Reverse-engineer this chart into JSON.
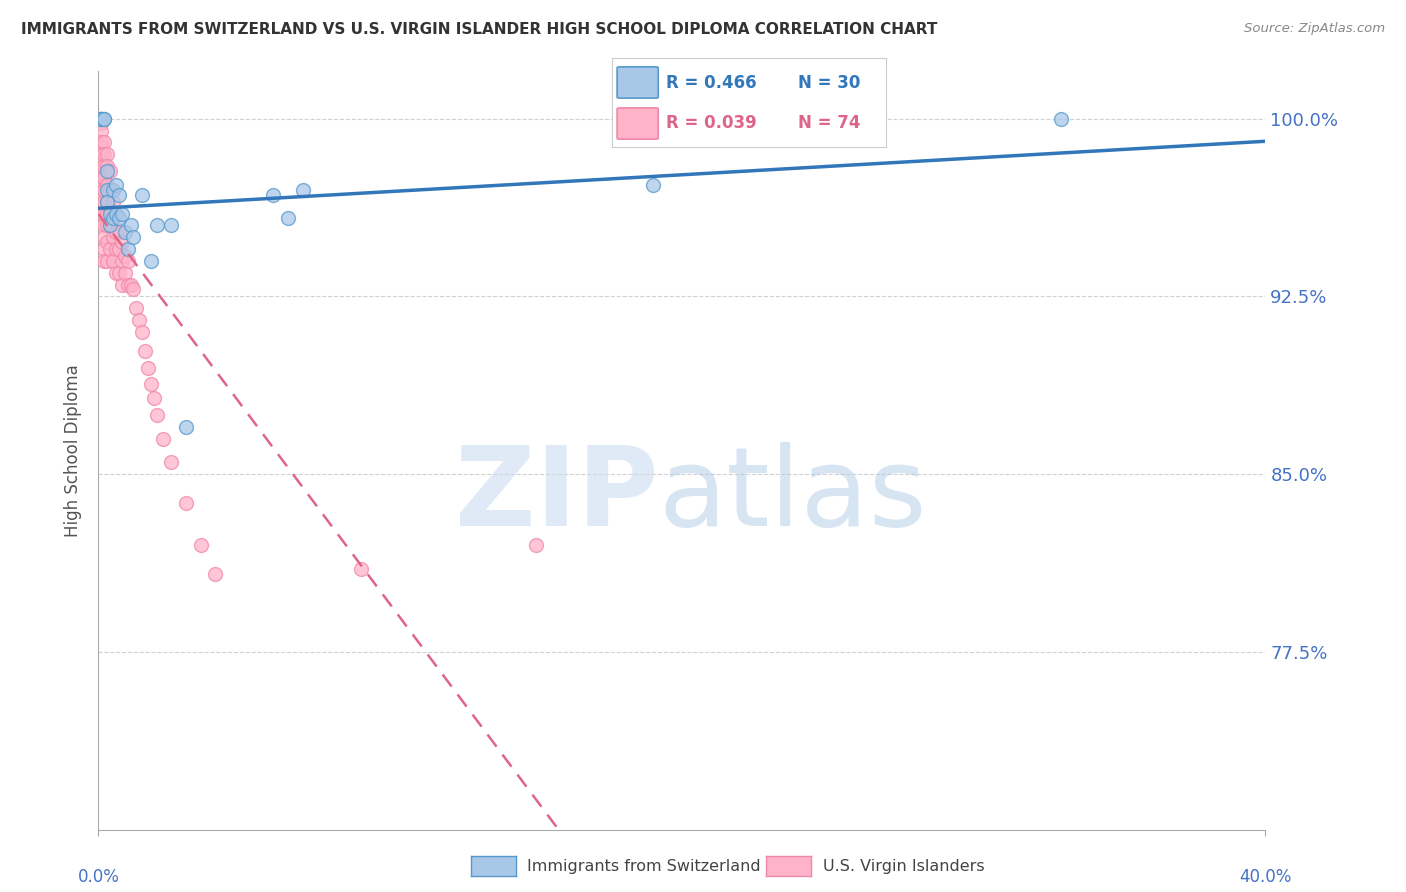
{
  "title": "IMMIGRANTS FROM SWITZERLAND VS U.S. VIRGIN ISLANDER HIGH SCHOOL DIPLOMA CORRELATION CHART",
  "source": "Source: ZipAtlas.com",
  "ylabel": "High School Diploma",
  "yticks": [
    0.775,
    0.85,
    0.925,
    1.0
  ],
  "ytick_labels": [
    "77.5%",
    "85.0%",
    "92.5%",
    "100.0%"
  ],
  "xmin": 0.0,
  "xmax": 0.4,
  "ymin": 0.7,
  "ymax": 1.02,
  "legend_r1": "R = 0.466",
  "legend_n1": "N = 30",
  "legend_r2": "R = 0.039",
  "legend_n2": "N = 74",
  "color_swiss_fill": "#a8c8e8",
  "color_swiss_edge": "#5599cc",
  "color_swiss_line": "#3377bb",
  "color_virgin_fill": "#ffb3c8",
  "color_virgin_edge": "#ee88aa",
  "color_virgin_line": "#dd6688",
  "color_axis_labels": "#4472C4",
  "color_title": "#333333",
  "swiss_x": [
    0.001,
    0.001,
    0.002,
    0.002,
    0.003,
    0.003,
    0.003,
    0.004,
    0.004,
    0.005,
    0.005,
    0.006,
    0.006,
    0.007,
    0.007,
    0.008,
    0.009,
    0.01,
    0.011,
    0.012,
    0.015,
    0.018,
    0.02,
    0.025,
    0.03,
    0.06,
    0.065,
    0.07,
    0.19,
    0.33
  ],
  "swiss_y": [
    1.0,
    1.0,
    1.0,
    1.0,
    0.978,
    0.97,
    0.965,
    0.96,
    0.955,
    0.97,
    0.958,
    0.972,
    0.96,
    0.968,
    0.958,
    0.96,
    0.952,
    0.945,
    0.955,
    0.95,
    0.968,
    0.94,
    0.955,
    0.955,
    0.87,
    0.968,
    0.958,
    0.97,
    0.972,
    1.0
  ],
  "virgin_x": [
    0.001,
    0.001,
    0.001,
    0.001,
    0.001,
    0.001,
    0.001,
    0.001,
    0.001,
    0.001,
    0.001,
    0.001,
    0.001,
    0.001,
    0.001,
    0.002,
    0.002,
    0.002,
    0.002,
    0.002,
    0.002,
    0.002,
    0.002,
    0.002,
    0.002,
    0.002,
    0.003,
    0.003,
    0.003,
    0.003,
    0.003,
    0.003,
    0.003,
    0.003,
    0.004,
    0.004,
    0.004,
    0.004,
    0.004,
    0.005,
    0.005,
    0.005,
    0.005,
    0.006,
    0.006,
    0.006,
    0.006,
    0.007,
    0.007,
    0.007,
    0.008,
    0.008,
    0.008,
    0.009,
    0.009,
    0.01,
    0.01,
    0.011,
    0.012,
    0.013,
    0.014,
    0.015,
    0.016,
    0.017,
    0.018,
    0.019,
    0.02,
    0.022,
    0.025,
    0.03,
    0.035,
    0.04,
    0.09,
    0.15
  ],
  "virgin_y": [
    1.0,
    1.0,
    1.0,
    1.0,
    0.998,
    0.995,
    0.99,
    0.988,
    0.985,
    0.982,
    0.978,
    0.975,
    0.972,
    0.968,
    0.96,
    0.99,
    0.985,
    0.98,
    0.975,
    0.97,
    0.965,
    0.96,
    0.955,
    0.95,
    0.945,
    0.94,
    0.985,
    0.98,
    0.972,
    0.965,
    0.96,
    0.955,
    0.948,
    0.94,
    0.978,
    0.97,
    0.962,
    0.955,
    0.945,
    0.965,
    0.958,
    0.95,
    0.94,
    0.96,
    0.952,
    0.945,
    0.935,
    0.952,
    0.945,
    0.935,
    0.948,
    0.94,
    0.93,
    0.942,
    0.935,
    0.94,
    0.93,
    0.93,
    0.928,
    0.92,
    0.915,
    0.91,
    0.902,
    0.895,
    0.888,
    0.882,
    0.875,
    0.865,
    0.855,
    0.838,
    0.82,
    0.808,
    0.81,
    0.82
  ]
}
